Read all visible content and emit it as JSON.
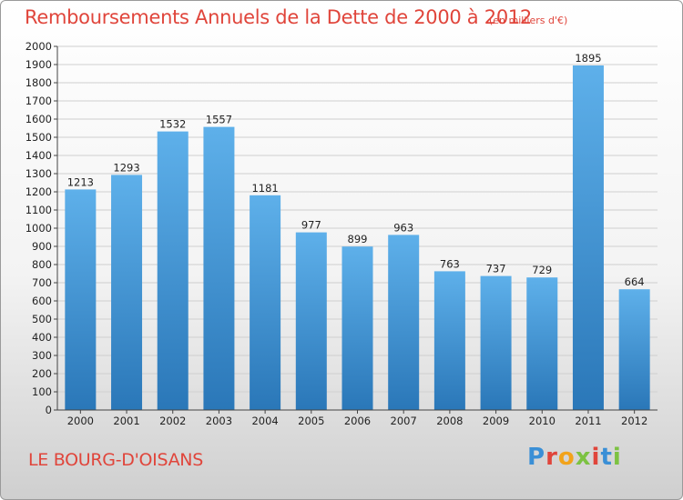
{
  "header": {
    "title": "Remboursements Annuels de la Dette de 2000 à 2012",
    "unit": "(en milliers d'€)"
  },
  "footer": {
    "city": "LE BOURG-D'OISANS",
    "brand": "Proxiti"
  },
  "colors": {
    "title": "#e0453b",
    "bar_top": "#5eb0ea",
    "bar_bottom": "#2a77b8",
    "grid": "#cfcfcf"
  },
  "chart_data": {
    "type": "bar",
    "title": "Remboursements Annuels de la Dette de 2000 à 2012",
    "xlabel": "",
    "ylabel": "",
    "ylim": [
      0,
      2000
    ],
    "ytick_step": 100,
    "grid": true,
    "categories": [
      "2000",
      "2001",
      "2002",
      "2003",
      "2004",
      "2005",
      "2006",
      "2007",
      "2008",
      "2009",
      "2010",
      "2011",
      "2012"
    ],
    "values": [
      1213,
      1293,
      1532,
      1557,
      1181,
      977,
      899,
      963,
      763,
      737,
      729,
      1895,
      664
    ]
  }
}
